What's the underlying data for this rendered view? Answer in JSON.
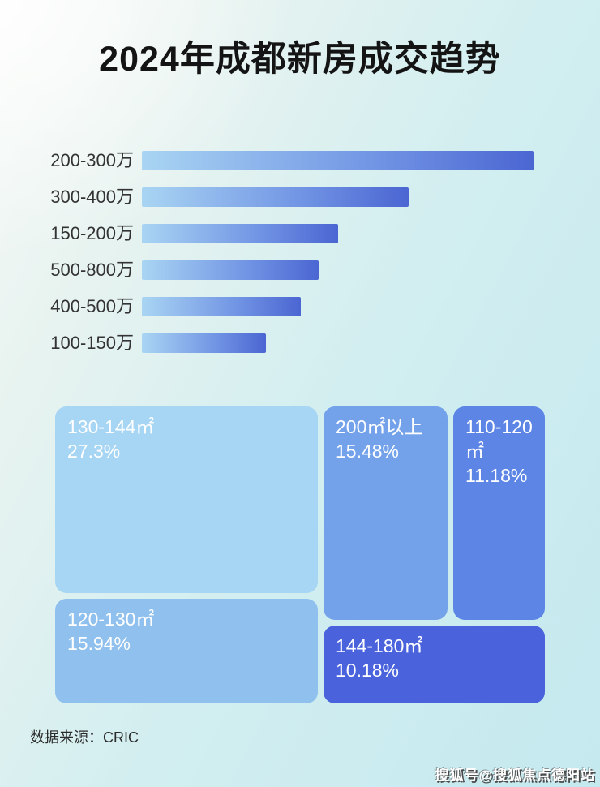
{
  "page": {
    "title": "2024年成都新房成交趋势",
    "source": "数据来源：CRIC",
    "watermark": "搜狐号@搜狐焦点德阳站"
  },
  "colors": {
    "background_top_left": "#f7f9f6",
    "background_bottom_right": "#c4e9ef",
    "bar_gradient_start": "#a9d5f3",
    "bar_gradient_end": "#4b66d2",
    "label_text": "#333333",
    "treemap_text": "#ffffff"
  },
  "chart_data": [
    {
      "type": "bar",
      "orientation": "horizontal",
      "title": "2024年成都新房成交趋势",
      "categories": [
        "200-300万",
        "300-400万",
        "150-200万",
        "500-800万",
        "400-500万",
        "100-150万"
      ],
      "values": [
        100,
        68.1,
        50.1,
        45.1,
        40.6,
        31.7
      ],
      "values_note": "numeric values are not labeled in the image; values are bar lengths relative to the longest bar (=100)",
      "xlim": [
        0,
        100
      ],
      "grid": false,
      "legend": false
    },
    {
      "type": "treemap",
      "title": "",
      "items": [
        {
          "label": "130-144㎡",
          "percent": "27.3%",
          "value": 27.3,
          "color": "#a7d5f4"
        },
        {
          "label": "120-130㎡",
          "percent": "15.94%",
          "value": 15.94,
          "color": "#8fc0ee"
        },
        {
          "label": "200㎡以上",
          "percent": "15.48%",
          "value": 15.48,
          "color": "#73a2eb"
        },
        {
          "label": "110-120㎡",
          "percent": "11.18%",
          "value": 11.18,
          "color": "#5c85e6"
        },
        {
          "label": "144-180㎡",
          "percent": "10.18%",
          "value": 10.18,
          "color": "#4a63dc"
        }
      ]
    }
  ]
}
